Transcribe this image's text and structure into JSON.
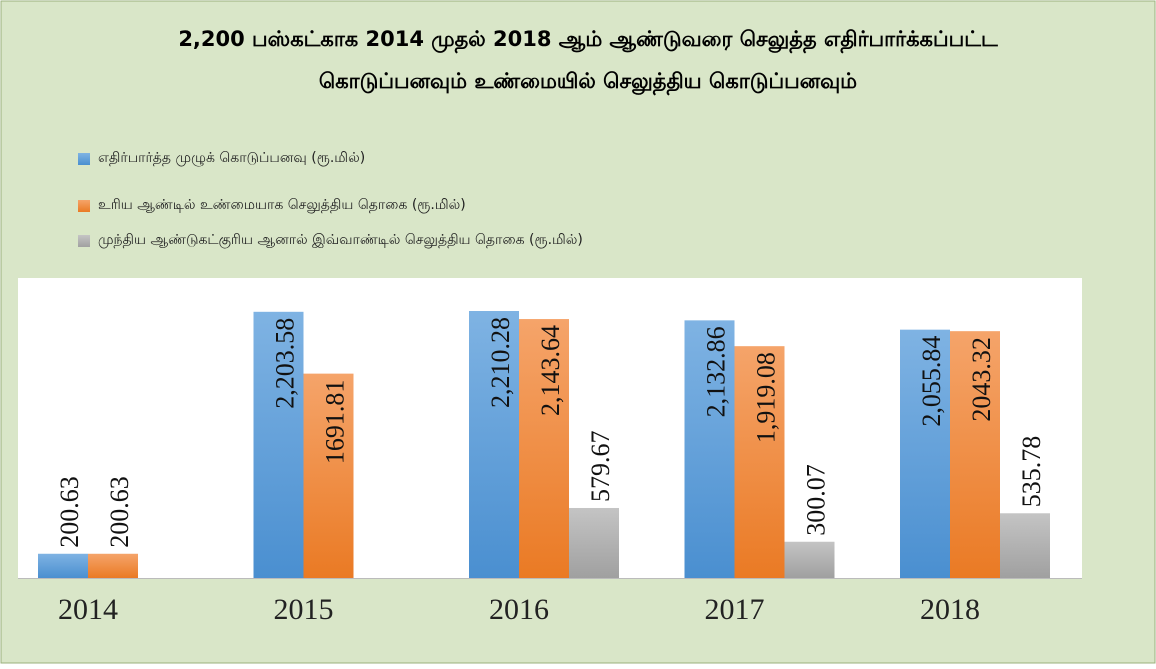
{
  "chart_data": {
    "type": "bar",
    "title": [
      "2,200 பஸ்கட்காக 2014 முதல் 2018 ஆம் ஆண்டுவரை செலுத்த எதிர்பார்க்கப்பட்ட",
      "கொடுப்பனவும் உண்மையில் செலுத்திய கொடுப்பனவும்"
    ],
    "categories": [
      "2014",
      "2015",
      "2016",
      "2017",
      "2018"
    ],
    "series": [
      {
        "name": "எதிர்பார்த்த முழுக் கொடுப்பனவு (ரூ.மில்)",
        "color": "#5b9bd5",
        "values": [
          200.63,
          2203.58,
          2210.28,
          2132.86,
          2055.84
        ],
        "value_labels": [
          "200.63",
          "2,203.58",
          "2,210.28",
          "2,132.86",
          "2,055.84"
        ]
      },
      {
        "name": "உரிய ஆண்டில் உண்மையாக செலுத்திய தொகை (ரூ.மில்)",
        "color": "#ed7d31",
        "values": [
          200.63,
          1691.81,
          2143.64,
          1919.08,
          2043.32
        ],
        "value_labels": [
          "200.63",
          "1691.81",
          "2,143.64",
          "1,919.08",
          "2043.32"
        ]
      },
      {
        "name": "முந்திய ஆண்டுகட்குரிய ஆனால் இவ்வாண்டில் செலுத்திய தொகை (ரூ.மில்)",
        "color": "#a5a5a5",
        "values": [
          null,
          null,
          579.67,
          300.07,
          535.78
        ],
        "value_labels": [
          null,
          null,
          "579.67",
          "300.07",
          "535.78"
        ]
      }
    ]
  }
}
